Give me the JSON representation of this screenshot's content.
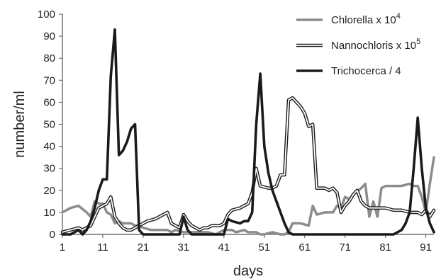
{
  "chart_data": {
    "type": "line",
    "xlabel": "days",
    "ylabel": "number/ml",
    "xlim": [
      1,
      93
    ],
    "ylim": [
      0,
      100
    ],
    "x_ticks": [
      1,
      11,
      21,
      31,
      41,
      51,
      61,
      71,
      81,
      91
    ],
    "y_ticks": [
      0,
      10,
      20,
      30,
      40,
      50,
      60,
      70,
      80,
      90,
      100
    ],
    "grid": false,
    "legend_position": "top-right",
    "series": [
      {
        "name": "Chlorella x 10",
        "name_superscript": "4",
        "color": "#8c8c8c",
        "style": "solid-gray",
        "points": [
          [
            1,
            10
          ],
          [
            2,
            11
          ],
          [
            3,
            12
          ],
          [
            5,
            13
          ],
          [
            7,
            10
          ],
          [
            8,
            8
          ],
          [
            9,
            15
          ],
          [
            10,
            14
          ],
          [
            11,
            14
          ],
          [
            12,
            10
          ],
          [
            13,
            9
          ],
          [
            14,
            5
          ],
          [
            15,
            6
          ],
          [
            16,
            5
          ],
          [
            18,
            5
          ],
          [
            19,
            4
          ],
          [
            20,
            4
          ],
          [
            21,
            3
          ],
          [
            23,
            2
          ],
          [
            25,
            2
          ],
          [
            27,
            2
          ],
          [
            28,
            1
          ],
          [
            29,
            2
          ],
          [
            31,
            1
          ],
          [
            33,
            1
          ],
          [
            35,
            1
          ],
          [
            37,
            1
          ],
          [
            39,
            0
          ],
          [
            41,
            2
          ],
          [
            43,
            2
          ],
          [
            44,
            1
          ],
          [
            46,
            2
          ],
          [
            47,
            1
          ],
          [
            48,
            1
          ],
          [
            49,
            1
          ],
          [
            50,
            0
          ],
          [
            51,
            0
          ],
          [
            53,
            1
          ],
          [
            55,
            0
          ],
          [
            56,
            0
          ],
          [
            57,
            1
          ],
          [
            58,
            5
          ],
          [
            59,
            5
          ],
          [
            60,
            5
          ],
          [
            62,
            4
          ],
          [
            63,
            13
          ],
          [
            64,
            9
          ],
          [
            66,
            10
          ],
          [
            68,
            10
          ],
          [
            69,
            13
          ],
          [
            70,
            12
          ],
          [
            71,
            17
          ],
          [
            72,
            16
          ],
          [
            73,
            18
          ],
          [
            75,
            21
          ],
          [
            76,
            23
          ],
          [
            77,
            8
          ],
          [
            78,
            15
          ],
          [
            79,
            8
          ],
          [
            80,
            21
          ],
          [
            81,
            22
          ],
          [
            83,
            22
          ],
          [
            85,
            22
          ],
          [
            87,
            23
          ],
          [
            88,
            22
          ],
          [
            89,
            22
          ],
          [
            90,
            17
          ],
          [
            91,
            10
          ],
          [
            92,
            23
          ],
          [
            93,
            35
          ]
        ]
      },
      {
        "name": "Nannochloris x 10",
        "name_superscript": "5",
        "color": "#1a1a1a",
        "style": "double-line",
        "points": [
          [
            1,
            1
          ],
          [
            3,
            2
          ],
          [
            5,
            3
          ],
          [
            6,
            2
          ],
          [
            7,
            3
          ],
          [
            8,
            4
          ],
          [
            9,
            8
          ],
          [
            10,
            12
          ],
          [
            11,
            13
          ],
          [
            12,
            14
          ],
          [
            13,
            17
          ],
          [
            14,
            8
          ],
          [
            15,
            5
          ],
          [
            16,
            3
          ],
          [
            17,
            2
          ],
          [
            18,
            2
          ],
          [
            19,
            3
          ],
          [
            20,
            4
          ],
          [
            22,
            6
          ],
          [
            24,
            7
          ],
          [
            26,
            9
          ],
          [
            27,
            10
          ],
          [
            28,
            5
          ],
          [
            29,
            4
          ],
          [
            30,
            3
          ],
          [
            31,
            9
          ],
          [
            32,
            6
          ],
          [
            33,
            4
          ],
          [
            34,
            3
          ],
          [
            35,
            2
          ],
          [
            36,
            3
          ],
          [
            37,
            3
          ],
          [
            38,
            4
          ],
          [
            40,
            4
          ],
          [
            41,
            5
          ],
          [
            42,
            9
          ],
          [
            43,
            11
          ],
          [
            45,
            12
          ],
          [
            47,
            14
          ],
          [
            48,
            19
          ],
          [
            49,
            30
          ],
          [
            50,
            22
          ],
          [
            52,
            21
          ],
          [
            53,
            21
          ],
          [
            54,
            22
          ],
          [
            55,
            27
          ],
          [
            56,
            27
          ],
          [
            57,
            61
          ],
          [
            58,
            62
          ],
          [
            59,
            60
          ],
          [
            60,
            58
          ],
          [
            61,
            55
          ],
          [
            62,
            49
          ],
          [
            63,
            50
          ],
          [
            64,
            21
          ],
          [
            66,
            21
          ],
          [
            67,
            20
          ],
          [
            68,
            21
          ],
          [
            69,
            19
          ],
          [
            70,
            10
          ],
          [
            71,
            13
          ],
          [
            72,
            15
          ],
          [
            73,
            18
          ],
          [
            74,
            20
          ],
          [
            75,
            15
          ],
          [
            76,
            13
          ],
          [
            77,
            12
          ],
          [
            79,
            12
          ],
          [
            81,
            12
          ],
          [
            83,
            11
          ],
          [
            85,
            11
          ],
          [
            87,
            10
          ],
          [
            89,
            10
          ],
          [
            90,
            9
          ],
          [
            91,
            11
          ],
          [
            92,
            8
          ],
          [
            93,
            11
          ]
        ]
      },
      {
        "name": "Trichocerca / 4",
        "color": "#1a1a1a",
        "style": "solid-black",
        "points": [
          [
            1,
            0
          ],
          [
            3,
            0
          ],
          [
            4,
            1
          ],
          [
            5,
            2
          ],
          [
            6,
            0
          ],
          [
            7,
            2
          ],
          [
            8,
            6
          ],
          [
            9,
            12
          ],
          [
            10,
            20
          ],
          [
            11,
            25
          ],
          [
            12,
            25
          ],
          [
            13,
            72
          ],
          [
            14,
            93
          ],
          [
            15,
            36
          ],
          [
            16,
            38
          ],
          [
            17,
            42
          ],
          [
            18,
            48
          ],
          [
            19,
            50
          ],
          [
            20,
            2
          ],
          [
            21,
            0
          ],
          [
            28,
            0
          ],
          [
            29,
            0
          ],
          [
            30,
            0
          ],
          [
            31,
            8
          ],
          [
            32,
            2
          ],
          [
            33,
            0
          ],
          [
            40,
            0
          ],
          [
            41,
            0
          ],
          [
            42,
            7
          ],
          [
            43,
            6
          ],
          [
            45,
            5
          ],
          [
            46,
            6
          ],
          [
            47,
            6
          ],
          [
            48,
            10
          ],
          [
            49,
            50
          ],
          [
            50,
            73
          ],
          [
            51,
            40
          ],
          [
            52,
            28
          ],
          [
            53,
            20
          ],
          [
            54,
            15
          ],
          [
            55,
            10
          ],
          [
            56,
            5
          ],
          [
            57,
            1
          ],
          [
            58,
            0
          ],
          [
            60,
            0
          ],
          [
            62,
            0
          ],
          [
            70,
            0
          ],
          [
            72,
            0
          ],
          [
            80,
            0
          ],
          [
            82,
            0
          ],
          [
            83,
            0
          ],
          [
            84,
            1
          ],
          [
            85,
            2
          ],
          [
            86,
            5
          ],
          [
            87,
            10
          ],
          [
            88,
            30
          ],
          [
            89,
            53
          ],
          [
            90,
            30
          ],
          [
            91,
            12
          ],
          [
            92,
            5
          ],
          [
            93,
            1
          ]
        ]
      }
    ]
  }
}
